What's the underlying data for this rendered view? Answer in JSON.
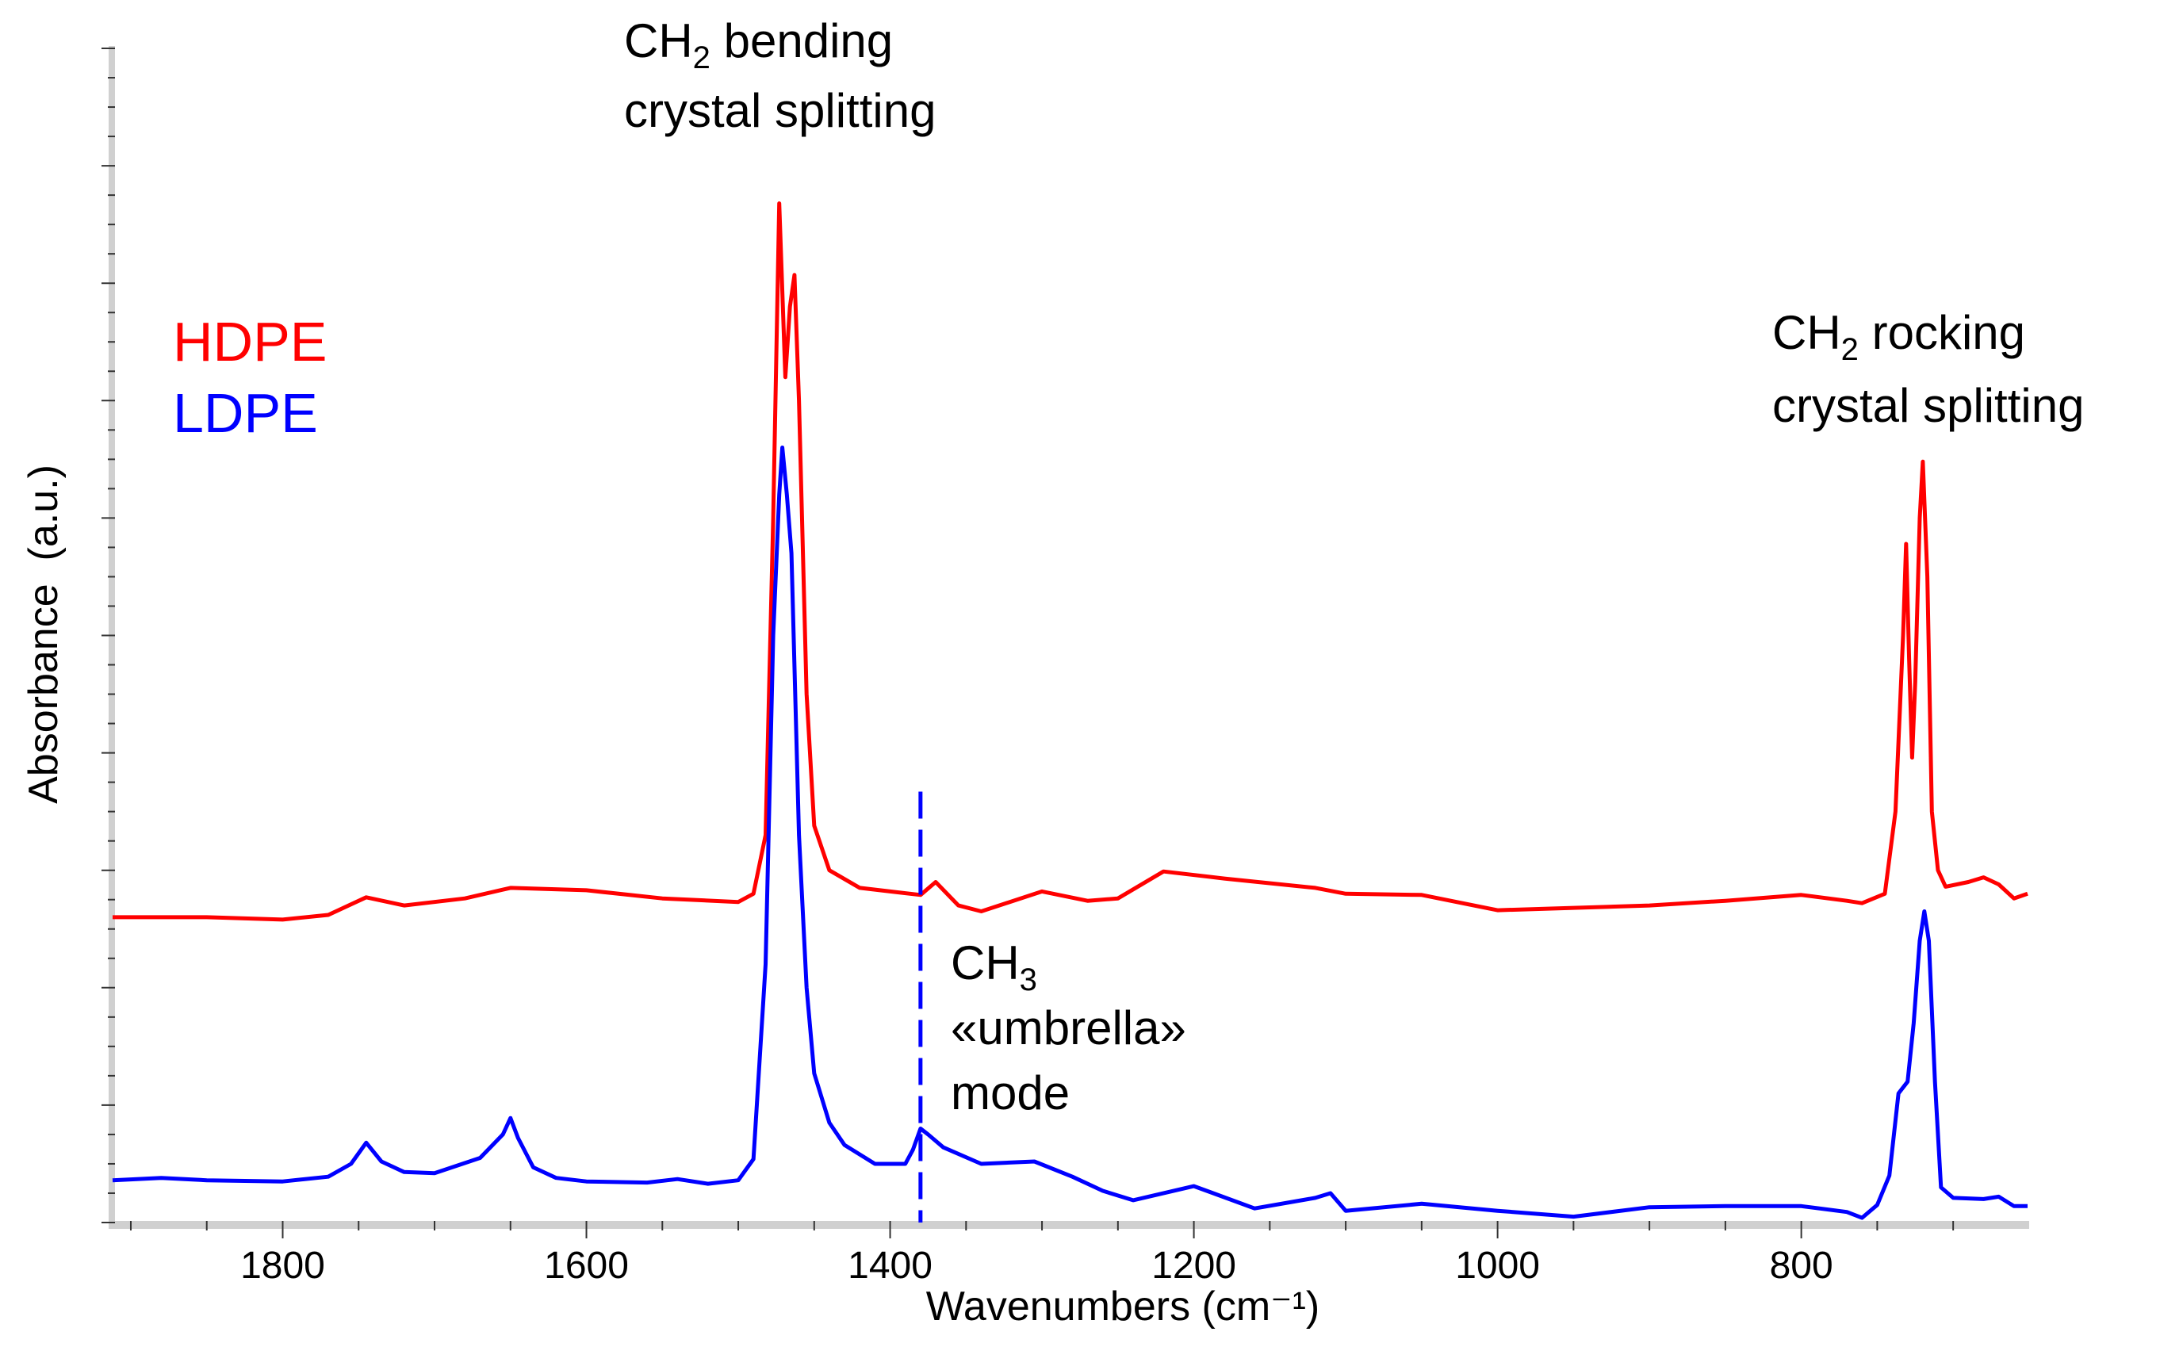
{
  "chart_data": {
    "type": "line",
    "title": "",
    "xlabel": "Wavenumbers (cm⁻¹)",
    "ylabel": "Absorbance  (a.u.)",
    "xlim": [
      1912,
      651
    ],
    "ylim": [
      0,
      100
    ],
    "x_ticks": [
      1800,
      1600,
      1400,
      1200,
      1000,
      800
    ],
    "x_tick_labels": [
      "1800",
      "1600",
      "1400",
      "1200",
      "1000",
      "800"
    ],
    "y_tick_labels_shown": false,
    "grid": false,
    "legend": {
      "placement": "top-left",
      "entries": [
        {
          "label": "HDPE",
          "color": "#ff0000"
        },
        {
          "label": "LDPE",
          "color": "#0000ff"
        }
      ]
    },
    "series": [
      {
        "name": "HDPE",
        "color": "#ff0000",
        "x": [
          1912,
          1850,
          1800,
          1770,
          1745,
          1720,
          1680,
          1650,
          1600,
          1550,
          1500,
          1490,
          1482,
          1477,
          1473,
          1469,
          1466,
          1463,
          1460,
          1455,
          1450,
          1440,
          1420,
          1400,
          1380,
          1370,
          1355,
          1340,
          1300,
          1270,
          1250,
          1220,
          1180,
          1120,
          1100,
          1050,
          1000,
          950,
          900,
          850,
          800,
          770,
          760,
          745,
          738,
          733,
          731,
          729,
          727,
          725,
          722,
          720,
          717,
          714,
          710,
          705,
          690,
          680,
          670,
          660,
          651
        ],
        "y": [
          26,
          26,
          25.8,
          26.2,
          27.7,
          27,
          27.6,
          28.5,
          28.3,
          27.6,
          27.3,
          28,
          33,
          60,
          86.8,
          72,
          78,
          80.7,
          70,
          45,
          33.8,
          30,
          28.5,
          28.2,
          27.9,
          29,
          27,
          26.5,
          28.2,
          27.4,
          27.6,
          29.9,
          29.3,
          28.5,
          28,
          27.9,
          26.6,
          26.8,
          27,
          27.4,
          27.9,
          27.4,
          27.2,
          28,
          35,
          50,
          57.8,
          48,
          39.6,
          46,
          60,
          64.8,
          55,
          35,
          30,
          28.6,
          29,
          29.4,
          28.8,
          27.6,
          28
        ]
      },
      {
        "name": "LDPE",
        "color": "#0000ff",
        "x": [
          1912,
          1880,
          1850,
          1800,
          1770,
          1755,
          1745,
          1735,
          1720,
          1700,
          1670,
          1655,
          1650,
          1645,
          1635,
          1620,
          1600,
          1560,
          1540,
          1520,
          1500,
          1490,
          1482,
          1477,
          1473,
          1471,
          1468,
          1465,
          1460,
          1455,
          1450,
          1440,
          1430,
          1410,
          1390,
          1385,
          1380,
          1375,
          1365,
          1340,
          1305,
          1280,
          1260,
          1240,
          1200,
          1160,
          1120,
          1110,
          1100,
          1050,
          1000,
          950,
          900,
          850,
          800,
          770,
          760,
          750,
          742,
          736,
          730,
          726,
          722,
          719,
          716,
          712,
          708,
          700,
          680,
          670,
          660,
          651
        ],
        "y": [
          3.6,
          3.8,
          3.6,
          3.5,
          3.9,
          5,
          6.8,
          5.2,
          4.3,
          4.2,
          5.5,
          7.5,
          8.9,
          7.2,
          4.7,
          3.8,
          3.5,
          3.4,
          3.7,
          3.3,
          3.6,
          5.4,
          22,
          50,
          62,
          66,
          62,
          57,
          33,
          20,
          12.7,
          8.5,
          6.6,
          5,
          5,
          6.2,
          8,
          7.5,
          6.4,
          5,
          5.2,
          3.9,
          2.7,
          1.9,
          3.1,
          1.2,
          2.1,
          2.5,
          1,
          1.6,
          1,
          0.5,
          1.3,
          1.4,
          1.4,
          0.9,
          0.4,
          1.5,
          4,
          11,
          12,
          17,
          24,
          26.5,
          24,
          12,
          3,
          2.1,
          2,
          2.2,
          1.4,
          1.4
        ]
      }
    ],
    "marker_line": {
      "x": 1380,
      "y_top": 36.7,
      "style": "dashed",
      "color": "#0000ff"
    },
    "annotations": [
      {
        "id": "bending",
        "lines": [
          {
            "main": "CH",
            "sub": "2",
            "rest": " bending"
          },
          {
            "main": "crystal splitting"
          }
        ]
      },
      {
        "id": "rocking",
        "lines": [
          {
            "main": "CH",
            "sub": "2",
            "rest": " rocking"
          },
          {
            "main": "crystal splitting"
          }
        ]
      },
      {
        "id": "umbrella",
        "lines": [
          {
            "main": "CH",
            "sub": "3",
            "rest": ""
          },
          {
            "main": "«umbrella»"
          },
          {
            "main": "mode"
          }
        ]
      }
    ]
  }
}
